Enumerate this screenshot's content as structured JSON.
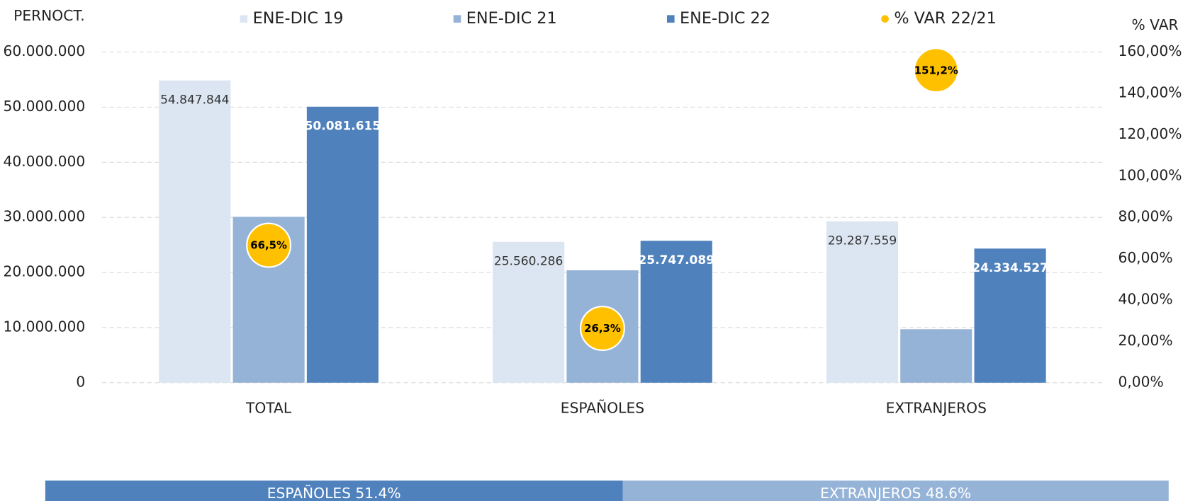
{
  "chart_data": {
    "type": "bar",
    "y_axis_title": "PERNOCT.",
    "y2_axis_title": "% VAR",
    "categories": [
      "TOTAL",
      "ESPAÑOLES",
      "EXTRANJEROS"
    ],
    "series": [
      {
        "name": "ENE-DIC 19",
        "color": "#dce6f2",
        "values": [
          54847844,
          25560286,
          29287559
        ],
        "value_labels": [
          "54.847.844",
          "25.560.286",
          "29.287.559"
        ]
      },
      {
        "name": "ENE-DIC 21",
        "color": "#95b3d7",
        "values": [
          30100000,
          20400000,
          9700000
        ]
      },
      {
        "name": "ENE-DIC 22",
        "color": "#4f81bd",
        "values": [
          50081615,
          25747089,
          24334527
        ],
        "value_labels": [
          "50.081.615",
          "25.747.089",
          "24.334.527"
        ]
      },
      {
        "name": "% VAR 22/21",
        "color": "#ffc000",
        "axis": "y2",
        "type": "bubble",
        "values": [
          66.5,
          26.3,
          151.2
        ],
        "value_labels": [
          "66,5%",
          "26,3%",
          "151,2%"
        ]
      }
    ],
    "ylim": [
      0,
      60000000
    ],
    "yticks": [
      0,
      {
        "value": 10000000,
        "label": "10.000.000"
      },
      {
        "value": 20000000,
        "label": "20.000.000"
      },
      {
        "value": 30000000,
        "label": "30.000.000"
      },
      {
        "value": 40000000,
        "label": "40.000.000"
      },
      {
        "value": 50000000,
        "label": "50.000.000"
      },
      {
        "value": 60000000,
        "label": "60.000.000"
      }
    ],
    "y2lim": [
      0,
      160
    ],
    "y2ticks": [
      {
        "value": 0,
        "label": "0,00%"
      },
      {
        "value": 20,
        "label": "20,00%"
      },
      {
        "value": 40,
        "label": "40,00%"
      },
      {
        "value": 60,
        "label": "60,00%"
      },
      {
        "value": 80,
        "label": "80,00%"
      },
      {
        "value": 100,
        "label": "100,00%"
      },
      {
        "value": 120,
        "label": "120,00%"
      },
      {
        "value": 140,
        "label": "140,00%"
      },
      {
        "value": 160,
        "label": "160,00%"
      }
    ],
    "grid": true
  },
  "share_bar": {
    "segments": [
      {
        "label": "ESPAÑOLES 51.4%",
        "value": 51.4,
        "color": "#4f81bd"
      },
      {
        "label": "EXTRANJEROS 48.6%",
        "value": 48.6,
        "color": "#95b3d7"
      }
    ]
  }
}
